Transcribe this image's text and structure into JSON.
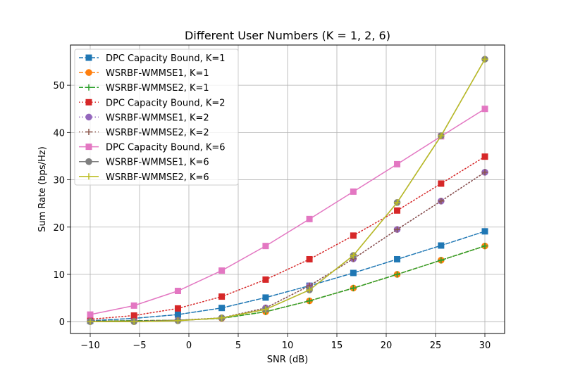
{
  "chart_data": {
    "type": "line",
    "title": "Different User Numbers (K = 1, 2, 6)",
    "xlabel": "SNR (dB)",
    "ylabel": "Sum Rate (bps/Hz)",
    "xlim": [
      -12,
      32
    ],
    "ylim": [
      -2.5,
      58.5
    ],
    "xticks": [
      -10,
      -5,
      0,
      5,
      10,
      15,
      20,
      25,
      30
    ],
    "yticks": [
      0,
      10,
      20,
      30,
      40,
      50
    ],
    "grid": true,
    "legend_position": "top-left",
    "x": [
      -10,
      -5.56,
      -1.11,
      3.33,
      7.78,
      12.22,
      16.67,
      21.11,
      25.56,
      30
    ],
    "series": [
      {
        "name": "DPC Capacity Bound, K=1",
        "color": "#1f77b4",
        "linestyle": "dashed",
        "marker": "square",
        "values": [
          0.2,
          0.7,
          1.5,
          2.9,
          5.1,
          7.6,
          10.3,
          13.2,
          16.1,
          19.1
        ]
      },
      {
        "name": "WSRBF-WMMSE1, K=1",
        "color": "#ff7f0e",
        "linestyle": "dashed",
        "marker": "circle",
        "values": [
          0.1,
          0.2,
          0.3,
          0.7,
          2.1,
          4.4,
          7.1,
          10.0,
          13.0,
          16.0
        ]
      },
      {
        "name": "WSRBF-WMMSE2, K=1",
        "color": "#2ca02c",
        "linestyle": "dashed",
        "marker": "plus",
        "values": [
          0.1,
          0.2,
          0.3,
          0.7,
          2.1,
          4.4,
          7.1,
          10.0,
          13.0,
          16.0
        ]
      },
      {
        "name": "DPC Capacity Bound, K=2",
        "color": "#d62728",
        "linestyle": "dotted",
        "marker": "square",
        "values": [
          0.5,
          1.3,
          2.8,
          5.3,
          8.9,
          13.2,
          18.2,
          23.5,
          29.2,
          34.9
        ]
      },
      {
        "name": "WSRBF-WMMSE1, K=2",
        "color": "#9467bd",
        "linestyle": "dotted",
        "marker": "circle",
        "values": [
          0.1,
          0.1,
          0.3,
          0.8,
          2.9,
          7.6,
          13.3,
          19.5,
          25.5,
          31.6
        ]
      },
      {
        "name": "WSRBF-WMMSE2, K=2",
        "color": "#8c564b",
        "linestyle": "dotted",
        "marker": "plus",
        "values": [
          0.1,
          0.1,
          0.3,
          0.8,
          2.9,
          7.6,
          13.3,
          19.5,
          25.5,
          31.6
        ]
      },
      {
        "name": "DPC Capacity Bound, K=6",
        "color": "#e377c2",
        "linestyle": "solid",
        "marker": "square",
        "values": [
          1.5,
          3.4,
          6.5,
          10.8,
          16.0,
          21.7,
          27.5,
          33.3,
          39.2,
          45.0
        ]
      },
      {
        "name": "WSRBF-WMMSE1, K=6",
        "color": "#7f7f7f",
        "linestyle": "solid",
        "marker": "circle",
        "values": [
          0.0,
          0.0,
          0.2,
          0.8,
          2.6,
          6.7,
          14.0,
          25.2,
          39.3,
          55.5
        ]
      },
      {
        "name": "WSRBF-WMMSE2, K=6",
        "color": "#bcbd22",
        "linestyle": "solid",
        "marker": "plus",
        "values": [
          0.0,
          0.0,
          0.2,
          0.8,
          2.6,
          6.7,
          14.0,
          25.2,
          39.3,
          55.5
        ]
      }
    ]
  }
}
